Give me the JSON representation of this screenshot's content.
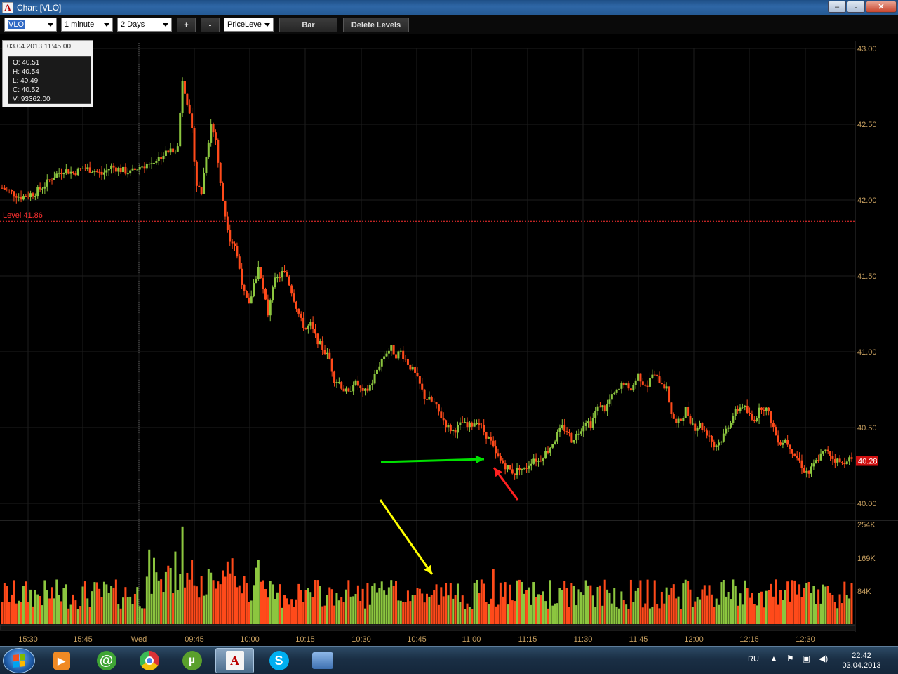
{
  "window": {
    "title": "Chart [VLO]",
    "buttons": [
      "minimize",
      "restore",
      "close"
    ]
  },
  "toolbar": {
    "ticker": "VLO",
    "interval": "1 minute",
    "range": "2 Days",
    "zoom_in": "+",
    "zoom_out": "-",
    "tool": "PriceLeve",
    "bar_label": "Bar",
    "delete_levels": "Delete Levels"
  },
  "infobox": {
    "timestamp": "03.04.2013 11:45:00",
    "open": "O: 40.51",
    "high": "H: 40.54",
    "low": "L: 40.49",
    "close": "C: 40.52",
    "volume": "V: 93362.00"
  },
  "level_label": "Level 41.86",
  "last_price_label": "40.28",
  "chart_data": {
    "type": "candlestick",
    "price_axis": {
      "ticks": [
        "43.00",
        "42.50",
        "42.00",
        "41.50",
        "41.00",
        "40.50",
        "40.00"
      ],
      "ylim": [
        40.0,
        43.0
      ]
    },
    "volume_axis": {
      "ticks": [
        "254K",
        "169K",
        "84K"
      ]
    },
    "time_axis": {
      "ticks": [
        "15:30",
        "15:45",
        "Wed",
        "09:45",
        "10:00",
        "10:15",
        "10:30",
        "10:45",
        "11:00",
        "11:15",
        "11:30",
        "11:45",
        "12:00",
        "12:15",
        "12:30"
      ]
    },
    "level": 41.86,
    "last_price": 40.28,
    "close_path": [
      [
        0,
        42.08
      ],
      [
        8,
        42.02
      ],
      [
        14,
        42.05
      ],
      [
        18,
        42.1
      ],
      [
        22,
        42.16
      ],
      [
        26,
        42.2
      ],
      [
        30,
        42.18
      ],
      [
        34,
        42.21
      ],
      [
        38,
        42.2
      ],
      [
        42,
        42.17
      ],
      [
        46,
        42.22
      ],
      [
        50,
        42.2
      ],
      [
        54,
        42.18
      ],
      [
        58,
        42.22
      ],
      [
        62,
        42.24
      ],
      [
        66,
        42.28
      ],
      [
        70,
        42.32
      ],
      [
        74,
        42.35
      ],
      [
        76,
        42.8
      ],
      [
        78,
        42.65
      ],
      [
        80,
        42.45
      ],
      [
        82,
        42.1
      ],
      [
        84,
        42.05
      ],
      [
        86,
        42.3
      ],
      [
        88,
        42.5
      ],
      [
        90,
        42.4
      ],
      [
        92,
        42.1
      ],
      [
        94,
        41.9
      ],
      [
        96,
        41.75
      ],
      [
        98,
        41.7
      ],
      [
        100,
        41.55
      ],
      [
        102,
        41.38
      ],
      [
        104,
        41.3
      ],
      [
        106,
        41.45
      ],
      [
        108,
        41.55
      ],
      [
        110,
        41.4
      ],
      [
        112,
        41.25
      ],
      [
        114,
        41.45
      ],
      [
        116,
        41.48
      ],
      [
        118,
        41.52
      ],
      [
        120,
        41.5
      ],
      [
        122,
        41.4
      ],
      [
        124,
        41.3
      ],
      [
        126,
        41.2
      ],
      [
        128,
        41.15
      ],
      [
        130,
        41.18
      ],
      [
        132,
        41.1
      ],
      [
        134,
        41.05
      ],
      [
        136,
        41.0
      ],
      [
        138,
        40.95
      ],
      [
        140,
        40.82
      ],
      [
        142,
        40.8
      ],
      [
        144,
        40.75
      ],
      [
        146,
        40.72
      ],
      [
        148,
        40.8
      ],
      [
        150,
        40.78
      ],
      [
        152,
        40.72
      ],
      [
        154,
        40.75
      ],
      [
        156,
        40.8
      ],
      [
        158,
        40.88
      ],
      [
        160,
        40.95
      ],
      [
        162,
        41.0
      ],
      [
        164,
        41.02
      ],
      [
        166,
        40.98
      ],
      [
        168,
        41.0
      ],
      [
        170,
        40.95
      ],
      [
        172,
        40.9
      ],
      [
        174,
        40.85
      ],
      [
        176,
        40.78
      ],
      [
        178,
        40.7
      ],
      [
        180,
        40.68
      ],
      [
        182,
        40.66
      ],
      [
        184,
        40.6
      ],
      [
        186,
        40.55
      ],
      [
        188,
        40.5
      ],
      [
        190,
        40.48
      ],
      [
        192,
        40.5
      ],
      [
        194,
        40.53
      ],
      [
        196,
        40.5
      ],
      [
        198,
        40.52
      ],
      [
        200,
        40.55
      ],
      [
        202,
        40.5
      ],
      [
        204,
        40.45
      ],
      [
        206,
        40.4
      ],
      [
        208,
        40.32
      ],
      [
        210,
        40.28
      ],
      [
        212,
        40.25
      ],
      [
        214,
        40.22
      ],
      [
        216,
        40.2
      ],
      [
        218,
        40.24
      ],
      [
        220,
        40.22
      ],
      [
        222,
        40.26
      ],
      [
        224,
        40.3
      ],
      [
        226,
        40.28
      ],
      [
        228,
        40.32
      ],
      [
        230,
        40.35
      ],
      [
        232,
        40.4
      ],
      [
        234,
        40.45
      ],
      [
        236,
        40.5
      ],
      [
        238,
        40.48
      ],
      [
        240,
        40.42
      ],
      [
        242,
        40.45
      ],
      [
        244,
        40.5
      ],
      [
        246,
        40.55
      ],
      [
        248,
        40.52
      ],
      [
        250,
        40.6
      ],
      [
        252,
        40.65
      ],
      [
        254,
        40.62
      ],
      [
        256,
        40.68
      ],
      [
        258,
        40.72
      ],
      [
        260,
        40.75
      ],
      [
        262,
        40.8
      ],
      [
        264,
        40.74
      ],
      [
        266,
        40.78
      ],
      [
        268,
        40.85
      ],
      [
        270,
        40.8
      ],
      [
        272,
        40.78
      ],
      [
        274,
        40.85
      ],
      [
        276,
        40.82
      ],
      [
        278,
        40.8
      ],
      [
        280,
        40.75
      ],
      [
        282,
        40.6
      ],
      [
        284,
        40.52
      ],
      [
        286,
        40.55
      ],
      [
        288,
        40.62
      ],
      [
        290,
        40.55
      ],
      [
        292,
        40.5
      ],
      [
        294,
        40.52
      ],
      [
        296,
        40.48
      ],
      [
        298,
        40.45
      ],
      [
        300,
        40.38
      ],
      [
        302,
        40.4
      ],
      [
        304,
        40.45
      ],
      [
        306,
        40.52
      ],
      [
        308,
        40.58
      ],
      [
        310,
        40.62
      ],
      [
        312,
        40.65
      ],
      [
        314,
        40.6
      ],
      [
        316,
        40.55
      ],
      [
        318,
        40.58
      ],
      [
        320,
        40.64
      ],
      [
        322,
        40.62
      ],
      [
        324,
        40.55
      ],
      [
        326,
        40.45
      ],
      [
        328,
        40.4
      ],
      [
        330,
        40.42
      ],
      [
        332,
        40.38
      ],
      [
        334,
        40.32
      ],
      [
        336,
        40.28
      ],
      [
        338,
        40.22
      ],
      [
        340,
        40.2
      ],
      [
        342,
        40.25
      ],
      [
        344,
        40.3
      ],
      [
        346,
        40.33
      ],
      [
        348,
        40.35
      ],
      [
        350,
        40.3
      ],
      [
        352,
        40.28
      ],
      [
        354,
        40.26
      ],
      [
        356,
        40.3
      ],
      [
        358,
        40.28
      ]
    ],
    "annotations": [
      {
        "type": "arrow",
        "color": "#00e000",
        "direction": "right"
      },
      {
        "type": "arrow",
        "color": "#ff2020",
        "direction": "up-left"
      },
      {
        "type": "arrow",
        "color": "#ffff00",
        "direction": "down-right"
      }
    ],
    "colors": {
      "up": "#8cc63f",
      "down": "#ff4a1a",
      "level": "#ff3030",
      "grid": "#1e1e1e",
      "axis_text": "#c8a060"
    }
  },
  "taskbar": {
    "apps": [
      "media-player-icon",
      "mail-agent-icon",
      "chrome-icon",
      "utorrent-icon",
      "trading-app-icon",
      "skype-icon",
      "explorer-icon"
    ],
    "lang": "RU",
    "time": "22:42",
    "date": "03.04.2013"
  }
}
